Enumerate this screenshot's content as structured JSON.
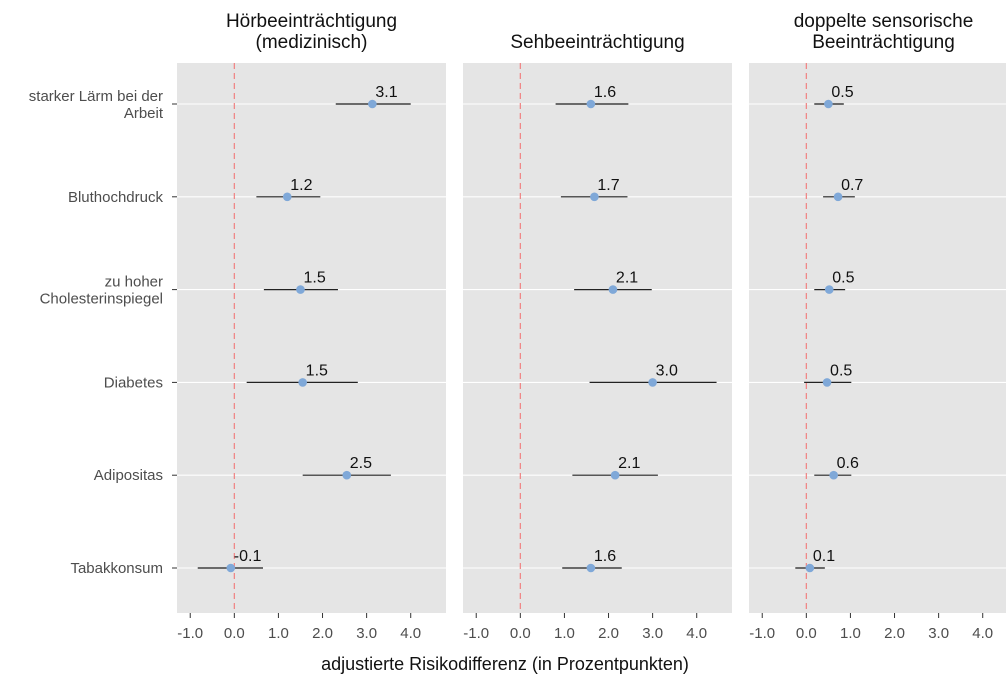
{
  "chart_data": {
    "type": "forest",
    "xlabel": "adjustierte Risikodifferenz (in Prozentpunkten)",
    "xlim": [
      -1.3,
      4.8
    ],
    "xticks": [
      -1.0,
      0.0,
      1.0,
      2.0,
      3.0,
      4.0
    ],
    "xtick_labels": [
      "-1.0",
      "0.0",
      "1.0",
      "2.0",
      "3.0",
      "4.0"
    ],
    "reference_line": 0,
    "categories": [
      [
        "starker Lärm bei der",
        "Arbeit"
      ],
      [
        "Bluthochdruck"
      ],
      [
        "zu hoher",
        "Cholesterinspiegel"
      ],
      [
        "Diabetes"
      ],
      [
        "Adipositas"
      ],
      [
        "Tabakkonsum"
      ]
    ],
    "panels": [
      {
        "title": [
          "Hörbeeinträchtigung",
          "(medizinisch)"
        ],
        "points": [
          {
            "estimate": 3.13,
            "lower": 2.3,
            "upper": 4.0,
            "label": "3.1"
          },
          {
            "estimate": 1.2,
            "lower": 0.5,
            "upper": 1.95,
            "label": "1.2"
          },
          {
            "estimate": 1.5,
            "lower": 0.67,
            "upper": 2.35,
            "label": "1.5"
          },
          {
            "estimate": 1.55,
            "lower": 0.28,
            "upper": 2.8,
            "label": "1.5"
          },
          {
            "estimate": 2.55,
            "lower": 1.55,
            "upper": 3.55,
            "label": "2.5"
          },
          {
            "estimate": -0.08,
            "lower": -0.83,
            "upper": 0.65,
            "label": "-0.1"
          }
        ]
      },
      {
        "title": [
          "Sehbeeinträchtigung"
        ],
        "points": [
          {
            "estimate": 1.6,
            "lower": 0.8,
            "upper": 2.45,
            "label": "1.6"
          },
          {
            "estimate": 1.68,
            "lower": 0.92,
            "upper": 2.43,
            "label": "1.7"
          },
          {
            "estimate": 2.1,
            "lower": 1.22,
            "upper": 2.98,
            "label": "2.1"
          },
          {
            "estimate": 3.0,
            "lower": 1.57,
            "upper": 4.45,
            "label": "3.0"
          },
          {
            "estimate": 2.15,
            "lower": 1.18,
            "upper": 3.12,
            "label": "2.1"
          },
          {
            "estimate": 1.6,
            "lower": 0.95,
            "upper": 2.3,
            "label": "1.6"
          }
        ]
      },
      {
        "title": [
          "doppelte sensorische",
          "Beeinträchtigung"
        ],
        "points": [
          {
            "estimate": 0.5,
            "lower": 0.18,
            "upper": 0.85,
            "label": "0.5"
          },
          {
            "estimate": 0.72,
            "lower": 0.38,
            "upper": 1.1,
            "label": "0.7"
          },
          {
            "estimate": 0.52,
            "lower": 0.18,
            "upper": 0.88,
            "label": "0.5"
          },
          {
            "estimate": 0.47,
            "lower": -0.05,
            "upper": 1.02,
            "label": "0.5"
          },
          {
            "estimate": 0.62,
            "lower": 0.18,
            "upper": 1.02,
            "label": "0.6"
          },
          {
            "estimate": 0.08,
            "lower": -0.25,
            "upper": 0.42,
            "label": "0.1"
          }
        ]
      }
    ],
    "colors": {
      "panel_background": "#e5e5e5",
      "gridline": "#ffffff",
      "reference_line": "#f08080",
      "point": "#7fa8d8",
      "interval": "#222222"
    },
    "grid": "horizontal",
    "legend": "none"
  }
}
